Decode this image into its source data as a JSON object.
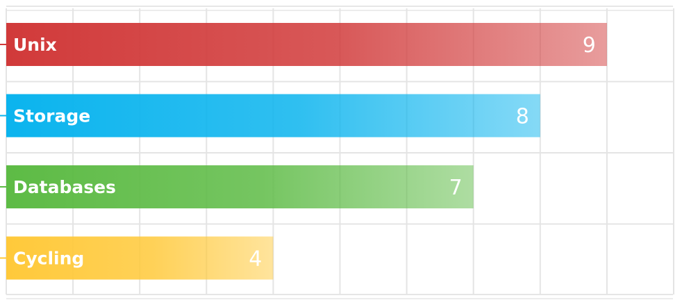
{
  "chart_data": {
    "type": "bar",
    "orientation": "horizontal",
    "categories": [
      "Unix",
      "Storage",
      "Databases",
      "Cycling"
    ],
    "values": [
      9,
      8,
      7,
      4
    ],
    "xlim": [
      0,
      10
    ],
    "grid": true,
    "colors": [
      "#d13a3a",
      "#0bb4ee",
      "#5dbb45",
      "#ffc93a"
    ]
  }
}
